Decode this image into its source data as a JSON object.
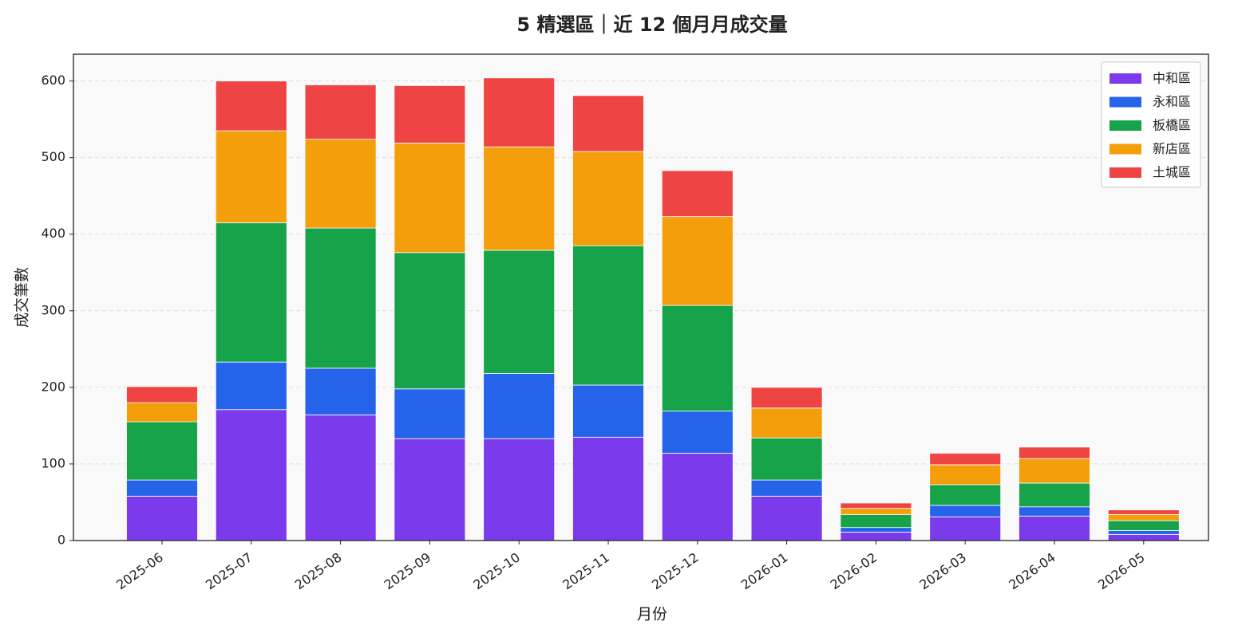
{
  "chart_data": {
    "type": "stacked_bar",
    "title": "5 精選區｜近 12 個月月成交量",
    "x_label": "月份",
    "y_label": "成交筆數",
    "categories": [
      "2025-06",
      "2025-07",
      "2025-08",
      "2025-09",
      "2025-10",
      "2025-11",
      "2025-12",
      "2026-01",
      "2026-02",
      "2026-03",
      "2026-04",
      "2026-05"
    ],
    "series": [
      {
        "name": "中和區",
        "color": "#7c3aed",
        "values": [
          58,
          171,
          164,
          133,
          133,
          135,
          114,
          58,
          11,
          31,
          32,
          8
        ]
      },
      {
        "name": "永和區",
        "color": "#2563eb",
        "values": [
          21,
          62,
          61,
          65,
          85,
          68,
          55,
          21,
          6,
          15,
          12,
          5
        ]
      },
      {
        "name": "板橋區",
        "color": "#16a34a",
        "values": [
          76,
          182,
          183,
          178,
          161,
          182,
          138,
          55,
          17,
          27,
          31,
          13
        ]
      },
      {
        "name": "新店區",
        "color": "#f59e0b",
        "values": [
          25,
          120,
          116,
          143,
          135,
          123,
          116,
          39,
          8,
          26,
          32,
          8
        ]
      },
      {
        "name": "土城區",
        "color": "#ef4444",
        "values": [
          21,
          65,
          71,
          75,
          90,
          73,
          60,
          27,
          7,
          15,
          15,
          6
        ]
      }
    ],
    "ylim": [
      0,
      635
    ],
    "yticks": [
      0,
      100,
      200,
      300,
      400,
      500,
      600
    ],
    "grid": true,
    "legend": "upper right"
  }
}
